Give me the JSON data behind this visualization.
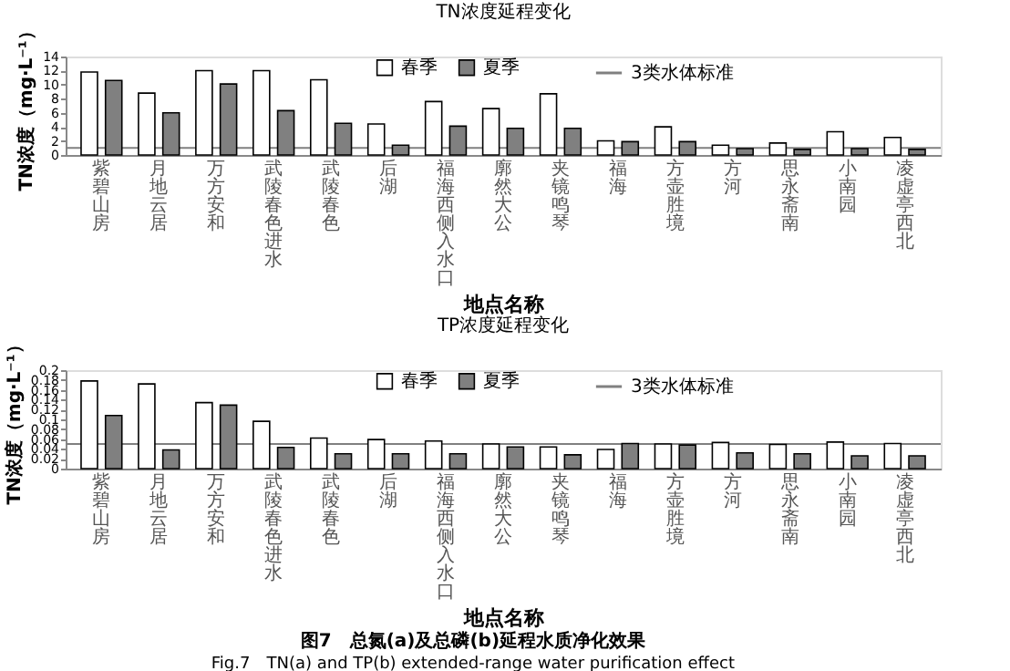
{
  "chart_data": [
    {
      "type": "bar",
      "title": "TN浓度延程变化",
      "xlabel": "地点名称",
      "ylabel": "TN浓度（mg·L⁻¹）",
      "categories": [
        "紫碧山房",
        "月地云居",
        "万方安和",
        "武陵春色进水",
        "武陵春色",
        "后湖",
        "福海西侧入水口",
        "廓然大公",
        "夹镜鸣琴",
        "福海",
        "方壶胜境",
        "方河",
        "思永斋南",
        "小南园",
        "凌虚亭西北"
      ],
      "series": [
        {
          "name": "春季",
          "color": "#ffffff",
          "values": [
            11.8,
            8.8,
            12.0,
            12.0,
            10.7,
            4.4,
            7.6,
            6.6,
            8.7,
            2.0,
            4.0,
            1.4,
            1.7,
            3.3,
            2.5
          ]
        },
        {
          "name": "夏季",
          "color": "#808080",
          "values": [
            10.6,
            6.0,
            10.1,
            6.3,
            4.5,
            1.4,
            4.1,
            3.8,
            3.8,
            1.9,
            1.9,
            0.9,
            0.8,
            0.9,
            0.8
          ]
        }
      ],
      "ref_lines": [
        {
          "axis": "y",
          "value": 1,
          "label": "3类水体标准",
          "color": "#808080"
        }
      ],
      "ylim": [
        0,
        14
      ],
      "yticks": [
        0,
        2,
        4,
        6,
        8,
        10,
        12,
        14
      ],
      "grid": false,
      "legend": "top"
    },
    {
      "type": "bar",
      "title": "TP浓度延程变化",
      "xlabel": "地点名称",
      "ylabel": "TN浓度（mg·L⁻¹）",
      "categories": [
        "紫碧山房",
        "月地云居",
        "万方安和",
        "武陵春色进水",
        "武陵春色",
        "后湖",
        "福海西侧入水口",
        "廓然大公",
        "夹镜鸣琴",
        "福海",
        "方壶胜境",
        "方河",
        "思永斋南",
        "小南园",
        "凌虚亭西北"
      ],
      "series": [
        {
          "name": "春季",
          "color": "#ffffff",
          "values": [
            0.178,
            0.172,
            0.134,
            0.096,
            0.062,
            0.059,
            0.056,
            0.05,
            0.044,
            0.039,
            0.05,
            0.053,
            0.049,
            0.054,
            0.051
          ]
        },
        {
          "name": "夏季",
          "color": "#808080",
          "values": [
            0.108,
            0.038,
            0.129,
            0.043,
            0.03,
            0.03,
            0.03,
            0.044,
            0.028,
            0.051,
            0.048,
            0.032,
            0.03,
            0.026,
            0.026
          ]
        }
      ],
      "ref_lines": [
        {
          "axis": "y",
          "value": 0.05,
          "label": "3类水体标准",
          "color": "#808080"
        }
      ],
      "ylim": [
        0,
        0.2
      ],
      "yticks": [
        0,
        0.02,
        0.04,
        0.06,
        0.08,
        0.1,
        0.12,
        0.14,
        0.16,
        0.18,
        0.2
      ],
      "grid": false,
      "legend": "top",
      "annotations": [
        "图7　总氮(a)及总磷(b)延程水质净化效果",
        "Fig.7　TN(a) and TP(b) extended-range water purification effect"
      ]
    }
  ]
}
